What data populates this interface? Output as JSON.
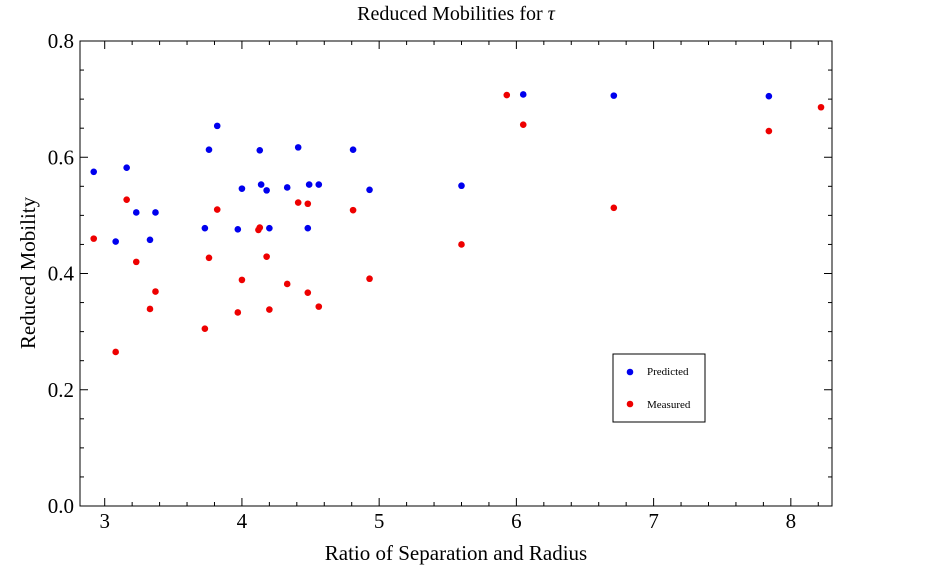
{
  "chart_data": {
    "type": "scatter",
    "title_prefix": "Reduced Mobilities for ",
    "title_symbol": "τ",
    "xlabel": "Ratio of Separation and Radius",
    "ylabel": "Reduced Mobility",
    "xlim": [
      2.82,
      8.3
    ],
    "ylim": [
      0.0,
      0.8
    ],
    "xticks": [
      3,
      4,
      5,
      6,
      7,
      8
    ],
    "yticks": [
      0.0,
      0.2,
      0.4,
      0.6,
      0.8
    ],
    "ytick_labels": [
      "0.0",
      "0.2",
      "0.4",
      "0.6",
      "0.8"
    ],
    "legend_placement": "lower-right",
    "series": [
      {
        "name": "Predicted",
        "color": "#0000ee",
        "points": [
          [
            2.92,
            0.575
          ],
          [
            3.08,
            0.455
          ],
          [
            3.16,
            0.582
          ],
          [
            3.23,
            0.505
          ],
          [
            3.33,
            0.458
          ],
          [
            3.37,
            0.505
          ],
          [
            3.73,
            0.478
          ],
          [
            3.76,
            0.613
          ],
          [
            3.82,
            0.654
          ],
          [
            3.97,
            0.476
          ],
          [
            4.0,
            0.546
          ],
          [
            4.13,
            0.612
          ],
          [
            4.14,
            0.553
          ],
          [
            4.18,
            0.543
          ],
          [
            4.2,
            0.478
          ],
          [
            4.33,
            0.548
          ],
          [
            4.41,
            0.617
          ],
          [
            4.48,
            0.478
          ],
          [
            4.49,
            0.553
          ],
          [
            4.56,
            0.553
          ],
          [
            4.81,
            0.613
          ],
          [
            4.93,
            0.544
          ],
          [
            5.6,
            0.551
          ],
          [
            6.05,
            0.708
          ],
          [
            6.71,
            0.706
          ],
          [
            7.84,
            0.705
          ]
        ]
      },
      {
        "name": "Measured",
        "color": "#ee0000",
        "points": [
          [
            2.92,
            0.46
          ],
          [
            3.08,
            0.265
          ],
          [
            3.16,
            0.527
          ],
          [
            3.23,
            0.42
          ],
          [
            3.33,
            0.339
          ],
          [
            3.37,
            0.369
          ],
          [
            3.73,
            0.305
          ],
          [
            3.76,
            0.427
          ],
          [
            3.82,
            0.51
          ],
          [
            3.97,
            0.333
          ],
          [
            4.0,
            0.389
          ],
          [
            4.12,
            0.475
          ],
          [
            4.13,
            0.479
          ],
          [
            4.18,
            0.429
          ],
          [
            4.2,
            0.338
          ],
          [
            4.33,
            0.382
          ],
          [
            4.41,
            0.522
          ],
          [
            4.48,
            0.367
          ],
          [
            4.48,
            0.52
          ],
          [
            4.56,
            0.343
          ],
          [
            4.81,
            0.509
          ],
          [
            4.93,
            0.391
          ],
          [
            5.6,
            0.45
          ],
          [
            5.93,
            0.707
          ],
          [
            6.05,
            0.656
          ],
          [
            6.71,
            0.513
          ],
          [
            7.84,
            0.645
          ],
          [
            8.22,
            0.686
          ]
        ]
      }
    ]
  }
}
